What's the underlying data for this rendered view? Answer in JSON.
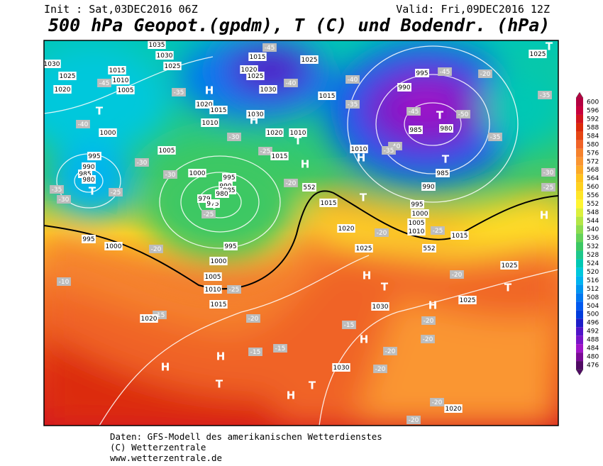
{
  "header": {
    "init": "Init : Sat,03DEC2016 06Z",
    "valid": "Valid: Fri,09DEC2016 12Z",
    "title": "500 hPa Geopot.(gpdm), T (C) und Bodendr. (hPa)"
  },
  "legend": {
    "levels": [
      600,
      596,
      592,
      588,
      584,
      580,
      576,
      572,
      568,
      564,
      560,
      556,
      552,
      548,
      544,
      540,
      536,
      532,
      528,
      524,
      520,
      516,
      512,
      508,
      504,
      500,
      496,
      492,
      488,
      484,
      480,
      476
    ],
    "colors": [
      "#b40040",
      "#c8003c",
      "#d2141e",
      "#dc2a0a",
      "#e64614",
      "#f06428",
      "#f5822d",
      "#fa9632",
      "#fcaa28",
      "#ffc31e",
      "#ffd21e",
      "#ffe628",
      "#fff532",
      "#dcf03c",
      "#b4e646",
      "#8cdc50",
      "#64d25a",
      "#3cc864",
      "#1ec88c",
      "#00c8b4",
      "#00c8dc",
      "#00b4f0",
      "#0096f0",
      "#0078f0",
      "#005af0",
      "#003cdc",
      "#1e1ec8",
      "#5014c8",
      "#7814c8",
      "#a014c8",
      "#7a0a96",
      "#500a64"
    ]
  },
  "map": {
    "pressure_labels": [
      "1035",
      "1030",
      "1025",
      "1015",
      "1010",
      "1005",
      "1030",
      "1025",
      "1020",
      "1000",
      "995",
      "990",
      "985",
      "980",
      "1005",
      "1000",
      "995",
      "990",
      "985",
      "980",
      "979",
      "975",
      "1020",
      "1015",
      "1010",
      "1030",
      "1020",
      "1010",
      "1015",
      "1020",
      "1025",
      "1030",
      "1015",
      "1025",
      "1015",
      "995",
      "990",
      "985",
      "980",
      "985",
      "990",
      "995",
      "1000",
      "1005",
      "1010",
      "1015",
      "1010",
      "1025",
      "1015",
      "1020",
      "1025",
      "1030",
      "1025",
      "1025",
      "995",
      "1000",
      "995",
      "1000",
      "1005",
      "1010",
      "1015",
      "1020",
      "1030",
      "1020"
    ],
    "temperature_labels": [
      "-45",
      "-40",
      "-35",
      "-30",
      "-25",
      "-30",
      "-30",
      "-25",
      "-35",
      "-30",
      "-40",
      "-45",
      "-45",
      "-20",
      "-35",
      "-45",
      "-50",
      "-35",
      "-40",
      "-35",
      "-30",
      "-25",
      "-25",
      "-20",
      "-20",
      "-20",
      "-20",
      "-15",
      "-20",
      "-15",
      "-15",
      "-15",
      "-20",
      "-20",
      "-20",
      "-20",
      "-20",
      "-20",
      "-10",
      "-25",
      "-40",
      "-35",
      "-25"
    ],
    "contour_labels": [
      "552",
      "552"
    ],
    "centers": [
      "T",
      "T",
      "H",
      "H",
      "T",
      "H",
      "T",
      "T",
      "T",
      "H",
      "T",
      "H",
      "H",
      "T",
      "H",
      "T",
      "H",
      "H",
      "T",
      "H",
      "H",
      "T",
      "T"
    ]
  },
  "footer": {
    "lines": [
      "Daten: GFS-Modell des amerikanischen Wetterdienstes",
      "(C) Wetterzentrale",
      "www.wetterzentrale.de"
    ]
  }
}
